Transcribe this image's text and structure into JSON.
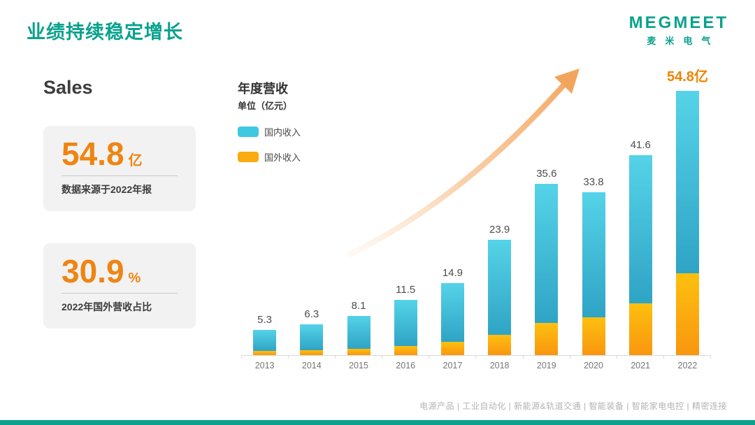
{
  "header": {
    "title": "业绩持续稳定增长",
    "logo": {
      "main": "MEGMEET",
      "sub": "麦米电气"
    }
  },
  "sales": {
    "heading": "Sales",
    "cards": [
      {
        "value": "54.8",
        "unit": "亿",
        "caption": "数据来源于2022年报"
      },
      {
        "value": "30.9",
        "unit": "%",
        "caption": "2022年国外营收占比"
      }
    ]
  },
  "chart": {
    "title": "年度营收",
    "subtitle": "单位（亿元）",
    "legend": [
      {
        "label": "国内收入",
        "color": "#3ec8e2"
      },
      {
        "label": "国外收入",
        "color": "#fbab12"
      }
    ]
  },
  "chart_data": {
    "type": "bar",
    "stacked": true,
    "title": "年度营收",
    "unit_label": "单位（亿元）",
    "categories": [
      "2013",
      "2014",
      "2015",
      "2016",
      "2017",
      "2018",
      "2019",
      "2020",
      "2021",
      "2022"
    ],
    "series": [
      {
        "name": "国内收入",
        "values": [
          4.4,
          5.3,
          6.8,
          9.6,
          12.2,
          19.7,
          28.9,
          25.9,
          30.8,
          37.9
        ]
      },
      {
        "name": "国外收入",
        "values": [
          0.9,
          1.0,
          1.3,
          1.9,
          2.7,
          4.2,
          6.7,
          7.9,
          10.8,
          16.9
        ]
      }
    ],
    "totals": [
      5.3,
      6.3,
      8.1,
      11.5,
      14.9,
      23.9,
      35.6,
      33.8,
      41.6,
      54.8
    ],
    "total_labels": [
      "5.3",
      "6.3",
      "8.1",
      "11.5",
      "14.9",
      "23.9",
      "35.6",
      "33.8",
      "41.6",
      "54.8亿"
    ],
    "highlight_last_label": true,
    "ylim": [
      0,
      54.8
    ],
    "grid": false,
    "legend_position": "top-left",
    "annotations": [
      "upward-trend-arrow"
    ]
  },
  "colors": {
    "brand_green": "#0aa28d",
    "accent_orange": "#ee8512",
    "bar_domestic_top": "#55d3e8",
    "bar_domestic_bottom": "#2fa4c5",
    "bar_overseas_top": "#fdc00f",
    "bar_overseas_bottom": "#f9960f",
    "arrow": "#f5a55f"
  },
  "footer": {
    "text": "电源产品 | 工业自动化 | 新能源&轨道交通 | 智能装备 | 智能家电电控 | 精密连接"
  }
}
